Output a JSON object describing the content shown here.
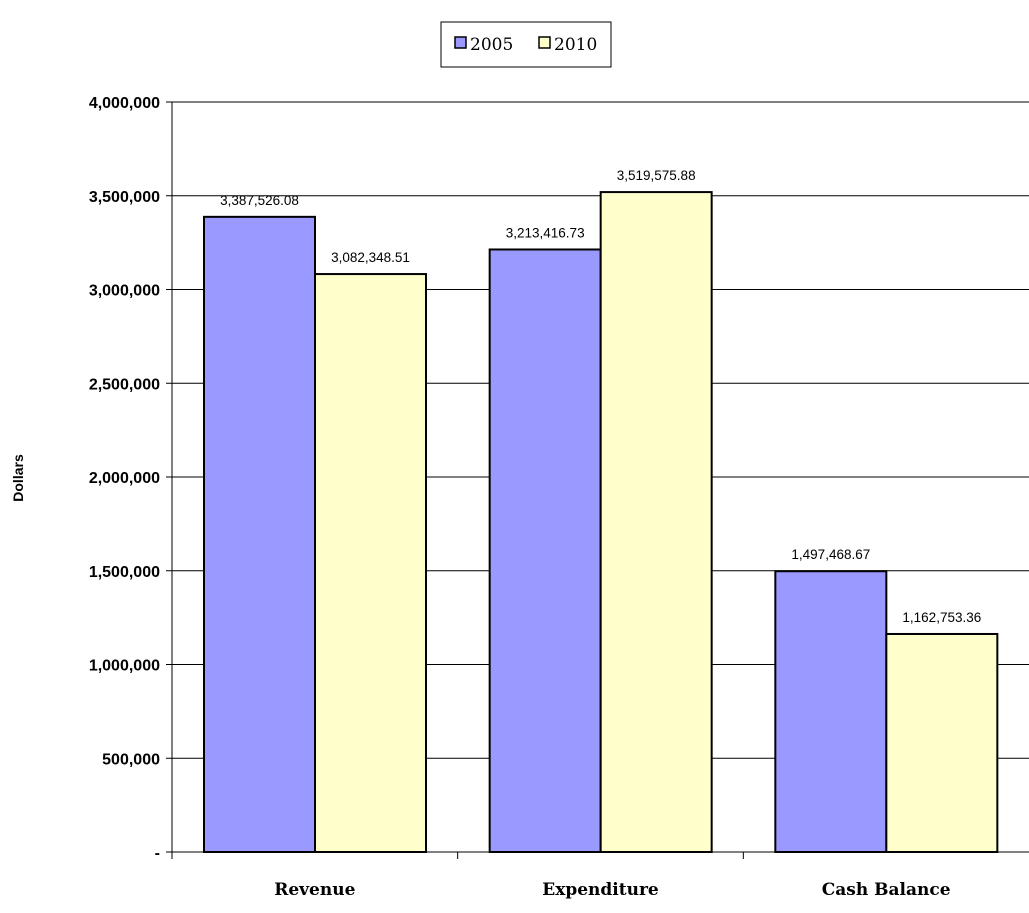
{
  "chart_data": {
    "type": "bar",
    "categories": [
      "Revenue",
      "Expenditure",
      "Cash Balance"
    ],
    "series": [
      {
        "name": "2005",
        "color": "#9999ff",
        "values": [
          3387526.08,
          3213416.73,
          1497468.67
        ],
        "labels": [
          "3,387,526.08",
          "3,213,416.73",
          "1,497,468.67"
        ]
      },
      {
        "name": "2010",
        "color": "#ffffcc",
        "values": [
          3082348.51,
          3519575.88,
          1162753.36
        ],
        "labels": [
          "3,082,348.51",
          "3,519,575.88",
          "1,162,753.36"
        ]
      }
    ],
    "title": "",
    "xlabel": "",
    "ylabel": "Dollars",
    "ylim": [
      0,
      4000000
    ],
    "yticks": [
      0,
      500000,
      1000000,
      1500000,
      2000000,
      2500000,
      3000000,
      3500000,
      4000000
    ],
    "ytick_labels": [
      "-",
      "500,000",
      "1,000,000",
      "1,500,000",
      "2,000,000",
      "2,500,000",
      "3,000,000",
      "3,500,000",
      "4,000,000"
    ],
    "grid": true,
    "legend_position": "top-center"
  }
}
